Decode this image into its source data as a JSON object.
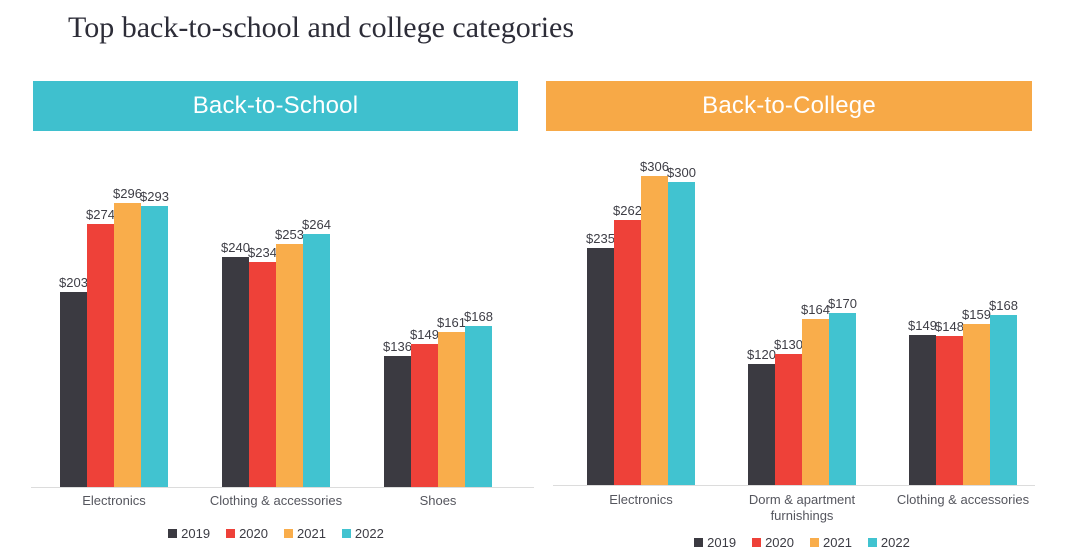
{
  "title": "Top back-to-school and college categories",
  "legend": [
    "2019",
    "2020",
    "2021",
    "2022"
  ],
  "colors": {
    "2019": "#3b3a41",
    "2020": "#ee4139",
    "2021": "#f9ad4b",
    "2022": "#41c3d0",
    "back_to_school_header": "#3fc0ce",
    "back_to_college_header": "#f7a947",
    "baseline": "#dcdcdc"
  },
  "chart_data": [
    {
      "type": "bar",
      "title": "Back-to-School",
      "value_prefix": "$",
      "categories": [
        "Electronics",
        "Clothing & accessories",
        "Shoes"
      ],
      "series": [
        {
          "name": "2019",
          "values": [
            203,
            240,
            136
          ]
        },
        {
          "name": "2020",
          "values": [
            274,
            234,
            149
          ]
        },
        {
          "name": "2021",
          "values": [
            296,
            253,
            161
          ]
        },
        {
          "name": "2022",
          "values": [
            293,
            264,
            168
          ]
        }
      ],
      "data_labels": true,
      "grid": false,
      "y_axis": "hidden",
      "legend_position": "bottom"
    },
    {
      "type": "bar",
      "title": "Back-to-College",
      "value_prefix": "$",
      "categories": [
        "Electronics",
        "Dorm & apartment furnishings",
        "Clothing & accessories"
      ],
      "series": [
        {
          "name": "2019",
          "values": [
            235,
            120,
            149
          ]
        },
        {
          "name": "2020",
          "values": [
            262,
            130,
            148
          ]
        },
        {
          "name": "2021",
          "values": [
            306,
            164,
            159
          ]
        },
        {
          "name": "2022",
          "values": [
            300,
            170,
            168
          ]
        }
      ],
      "data_labels": true,
      "grid": false,
      "y_axis": "hidden",
      "legend_position": "bottom"
    }
  ]
}
